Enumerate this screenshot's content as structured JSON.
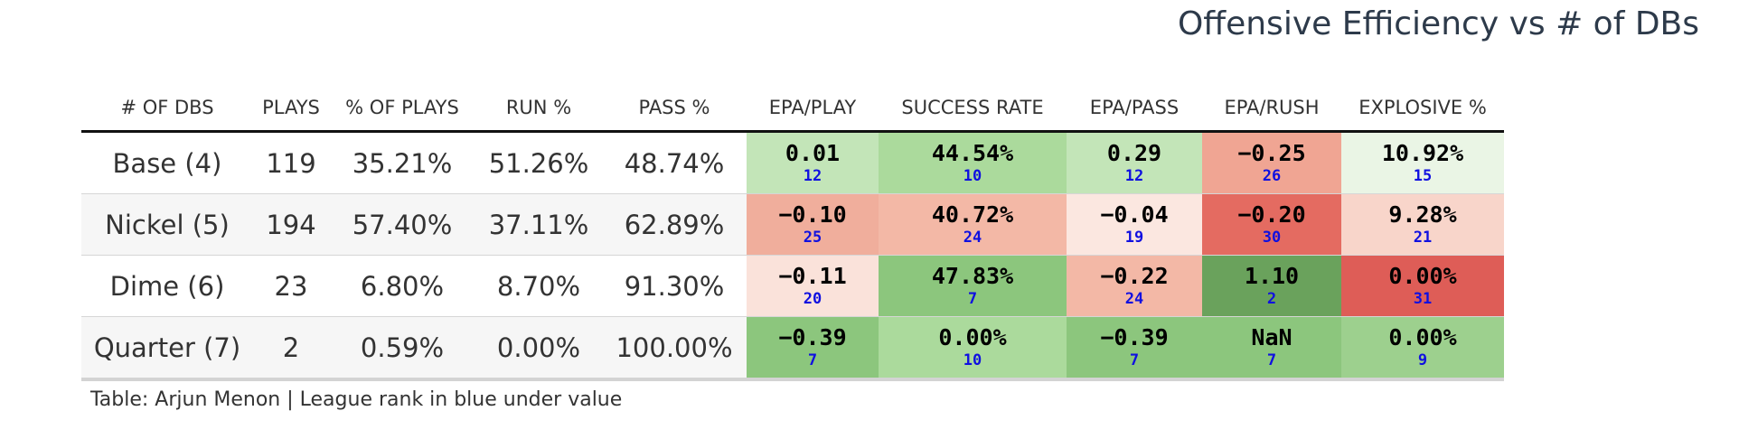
{
  "title": "Offensive Efficiency vs # of DBs",
  "caption": "Table: Arjun Menon | League rank in blue under value",
  "chart_data": {
    "type": "table",
    "title": "Offensive Efficiency vs # of DBs",
    "columns": [
      "# OF DBS",
      "PLAYS",
      "% OF PLAYS",
      "RUN %",
      "PASS %",
      "EPA/PLAY",
      "SUCCESS RATE",
      "EPA/PASS",
      "EPA/RUSH",
      "EXPLOSIVE %"
    ],
    "rows": [
      {
        "label": "Base (4)",
        "stats": [
          "119",
          "35.21%",
          "51.26%",
          "48.74%"
        ],
        "metrics": [
          {
            "value": "0.01",
            "rank": "12",
            "color": "#c3e5b8"
          },
          {
            "value": "44.54%",
            "rank": "10",
            "color": "#abda9c"
          },
          {
            "value": "0.29",
            "rank": "12",
            "color": "#c3e5b8"
          },
          {
            "value": "−0.25",
            "rank": "26",
            "color": "#f0a593"
          },
          {
            "value": "10.92%",
            "rank": "15",
            "color": "#eaf5e5"
          }
        ]
      },
      {
        "label": "Nickel (5)",
        "stats": [
          "194",
          "57.40%",
          "37.11%",
          "62.89%"
        ],
        "metrics": [
          {
            "value": "−0.10",
            "rank": "25",
            "color": "#f0ae9c"
          },
          {
            "value": "40.72%",
            "rank": "24",
            "color": "#f3b8a6"
          },
          {
            "value": "−0.04",
            "rank": "19",
            "color": "#fbe7e0"
          },
          {
            "value": "−0.20",
            "rank": "30",
            "color": "#e46b61"
          },
          {
            "value": "9.28%",
            "rank": "21",
            "color": "#f8d5ca"
          }
        ]
      },
      {
        "label": "Dime (6)",
        "stats": [
          "23",
          "6.80%",
          "8.70%",
          "91.30%"
        ],
        "metrics": [
          {
            "value": "−0.11",
            "rank": "20",
            "color": "#fae2da"
          },
          {
            "value": "47.83%",
            "rank": "7",
            "color": "#8cc67d"
          },
          {
            "value": "−0.22",
            "rank": "24",
            "color": "#f3b8a6"
          },
          {
            "value": "1.10",
            "rank": "2",
            "color": "#6aa25c"
          },
          {
            "value": "0.00%",
            "rank": "31",
            "color": "#de5d57"
          }
        ]
      },
      {
        "label": "Quarter (7)",
        "stats": [
          "2",
          "0.59%",
          "0.00%",
          "100.00%"
        ],
        "metrics": [
          {
            "value": "−0.39",
            "rank": "7",
            "color": "#8cc67d"
          },
          {
            "value": "0.00%",
            "rank": "10",
            "color": "#abda9c"
          },
          {
            "value": "−0.39",
            "rank": "7",
            "color": "#8cc67d"
          },
          {
            "value": "NaN",
            "rank": "7",
            "color": "#8cc67d"
          },
          {
            "value": "0.00%",
            "rank": "9",
            "color": "#9dd08e"
          }
        ]
      }
    ]
  }
}
